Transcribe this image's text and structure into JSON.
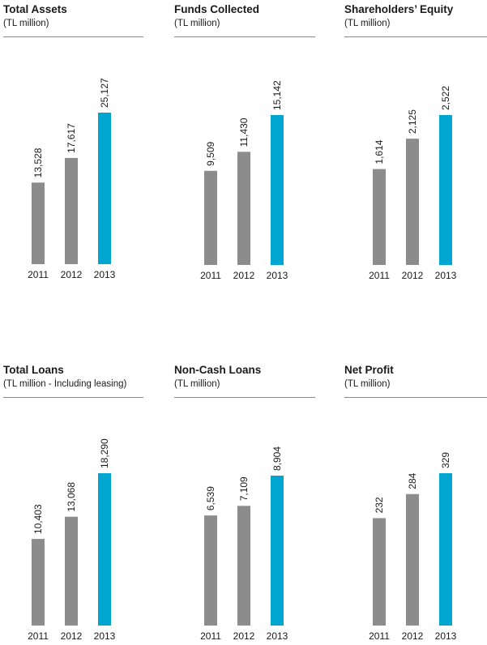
{
  "chart_data": [
    {
      "type": "bar",
      "title": "Total Assets",
      "subtitle": "(TL million)",
      "categories": [
        "2011",
        "2012",
        "2013"
      ],
      "values": [
        13528,
        17617,
        25127
      ],
      "value_labels": [
        "13,528",
        "17,617",
        "25,127"
      ],
      "colors": [
        "#8c8c8c",
        "#8c8c8c",
        "#00a6cf"
      ]
    },
    {
      "type": "bar",
      "title": "Funds Collected",
      "subtitle": "(TL million)",
      "categories": [
        "2011",
        "2012",
        "2013"
      ],
      "values": [
        9509,
        11430,
        15142
      ],
      "value_labels": [
        "9,509",
        "11,430",
        "15,142"
      ],
      "colors": [
        "#8c8c8c",
        "#8c8c8c",
        "#00a6cf"
      ]
    },
    {
      "type": "bar",
      "title": "Shareholders’ Equity",
      "subtitle": "(TL million)",
      "categories": [
        "2011",
        "2012",
        "2013"
      ],
      "values": [
        1614,
        2125,
        2522
      ],
      "value_labels": [
        "1,614",
        "2,125",
        "2,522"
      ],
      "colors": [
        "#8c8c8c",
        "#8c8c8c",
        "#00a6cf"
      ]
    },
    {
      "type": "bar",
      "title": "Total Loans",
      "subtitle": "(TL million - İncluding leasing)",
      "categories": [
        "2011",
        "2012",
        "2013"
      ],
      "values": [
        10403,
        13068,
        18290
      ],
      "value_labels": [
        "10,403",
        "13,068",
        "18,290"
      ],
      "colors": [
        "#8c8c8c",
        "#8c8c8c",
        "#00a6cf"
      ]
    },
    {
      "type": "bar",
      "title": "Non-Cash Loans",
      "subtitle": "(TL million)",
      "categories": [
        "2011",
        "2012",
        "2013"
      ],
      "values": [
        6539,
        7109,
        8904
      ],
      "value_labels": [
        "6,539",
        "7,109",
        "8,904"
      ],
      "colors": [
        "#8c8c8c",
        "#8c8c8c",
        "#00a6cf"
      ]
    },
    {
      "type": "bar",
      "title": "Net Profit",
      "subtitle": "(TL million)",
      "categories": [
        "2011",
        "2012",
        "2013"
      ],
      "values": [
        232,
        284,
        329
      ],
      "value_labels": [
        "232",
        "284",
        "329"
      ],
      "colors": [
        "#8c8c8c",
        "#8c8c8c",
        "#00a6cf"
      ]
    }
  ]
}
